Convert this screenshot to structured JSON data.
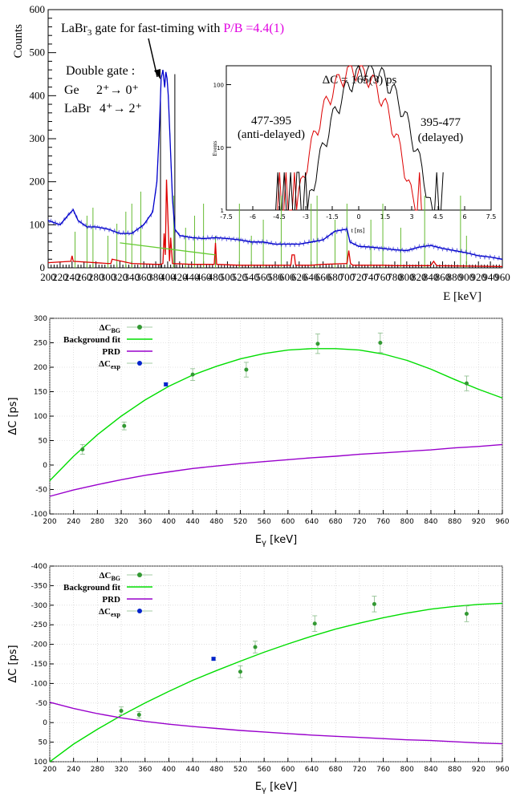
{
  "chart_data": [
    {
      "type": "line",
      "title": "LaBr3 gate for fast-timing with P/B =4.4(1)",
      "title_parts": {
        "pre": "LaBr",
        "sub": "3",
        "mid": " gate for fast-timing with ",
        "highlight": "P/B =4.4(1)",
        "highlight_color": "#e000e0"
      },
      "xlabel": "E [keV]",
      "ylabel": "Counts",
      "xlim": [
        200,
        960
      ],
      "ylim": [
        0,
        600
      ],
      "x_ticks": [
        "200",
        "220",
        "240",
        "260",
        "280",
        "300",
        "320",
        "340",
        "360",
        "380",
        "400",
        "420",
        "440",
        "460",
        "480",
        "500",
        "520",
        "540",
        "560",
        "580",
        "600",
        "620",
        "640",
        "660",
        "680",
        "700",
        "720",
        "740",
        "760",
        "780",
        "800",
        "820",
        "840",
        "860",
        "880",
        "900",
        "920",
        "940",
        "960"
      ],
      "y_ticks": [
        "0",
        "100",
        "200",
        "300",
        "400",
        "500",
        "600"
      ],
      "annotation": {
        "line1": "Double gate :",
        "ge_label": "Ge",
        "ge_trans": "2⁺→ 0⁺",
        "labr_label": "LaBr",
        "labr_trans": "4⁺→ 2⁺"
      },
      "gate_marks_x": [
        245,
        265,
        275,
        300,
        315,
        330,
        340,
        355,
        410,
        430,
        445,
        460,
        480,
        520,
        540,
        560,
        590,
        640,
        650,
        680,
        700,
        740,
        760,
        790,
        830,
        890,
        900
      ],
      "series": [
        {
          "color": "#0000cc",
          "values_x": [
            200,
            220,
            235,
            242,
            250,
            265,
            280,
            300,
            320,
            340,
            360,
            375,
            382,
            386,
            389,
            392,
            395,
            397,
            399,
            401,
            404,
            408,
            412,
            420,
            440,
            460,
            480,
            500,
            520,
            540,
            560,
            580,
            600,
            620,
            640,
            660,
            680,
            700,
            705,
            720,
            740,
            760,
            780,
            800,
            820,
            840,
            860,
            880,
            900,
            920,
            940,
            960
          ],
          "values_y": [
            110,
            100,
            125,
            135,
            110,
            95,
            95,
            90,
            80,
            80,
            100,
            130,
            200,
            320,
            440,
            460,
            420,
            455,
            440,
            400,
            300,
            160,
            90,
            75,
            70,
            68,
            70,
            68,
            65,
            60,
            60,
            55,
            55,
            55,
            60,
            65,
            85,
            90,
            60,
            50,
            48,
            45,
            42,
            40,
            48,
            52,
            45,
            40,
            35,
            28,
            25,
            20
          ]
        },
        {
          "color": "#dd0000",
          "values_x": [
            200,
            238,
            240,
            242,
            300,
            305,
            307,
            340,
            380,
            386,
            388,
            392,
            394,
            396,
            398,
            403,
            405,
            408,
            440,
            478,
            480,
            482,
            520,
            606,
            608,
            612,
            614,
            640,
            660,
            700,
            703,
            706,
            710,
            740,
            760,
            780,
            800,
            840,
            845,
            850,
            960
          ],
          "values_y": [
            12,
            15,
            28,
            15,
            10,
            10,
            20,
            10,
            8,
            8,
            8,
            10,
            80,
            30,
            205,
            15,
            70,
            10,
            8,
            8,
            58,
            8,
            6,
            6,
            30,
            30,
            6,
            6,
            8,
            10,
            40,
            10,
            6,
            6,
            6,
            5,
            5,
            5,
            15,
            5,
            3
          ]
        },
        {
          "color": "#66cc33",
          "values_x": [
            320,
            480
          ],
          "values_y": [
            58,
            30
          ]
        }
      ],
      "inset": {
        "type": "line",
        "title": "ΔC  = 165(3) ps",
        "xlabel": "t [ns]",
        "ylabel": "Events",
        "xlim": [
          -7.5,
          7.5
        ],
        "yscale": "log",
        "ylim": [
          1,
          200
        ],
        "x_ticks": [
          "-7.5",
          "-6",
          "-4.5",
          "-3",
          "-1.5",
          "0",
          "1.5",
          "3",
          "4.5",
          "6",
          "7.5"
        ],
        "y_ticks": [
          "1",
          "10",
          "100"
        ],
        "left_label": [
          "477-395",
          "(anti-delayed)"
        ],
        "right_label": [
          "395-477",
          "(delayed)"
        ],
        "series": [
          {
            "color": "#dd0000",
            "mu": -0.2,
            "sigma": 1.05,
            "peak": 175,
            "lo": -4.6,
            "hi": 3.6
          },
          {
            "color": "#000000",
            "mu": 0.6,
            "sigma": 1.1,
            "peak": 175,
            "lo": -4.7,
            "hi": 4.8
          }
        ]
      }
    },
    {
      "type": "scatter",
      "xlabel": "Eγ [keV]",
      "xlabel_main": "E",
      "xlabel_sub": "γ",
      "xlabel_unit": " [keV]",
      "ylabel": "ΔC [ps]",
      "xlim": [
        200,
        960
      ],
      "ylim": [
        -100,
        300
      ],
      "x_ticks": [
        "200",
        "240",
        "280",
        "320",
        "360",
        "400",
        "440",
        "480",
        "520",
        "560",
        "600",
        "640",
        "680",
        "720",
        "760",
        "800",
        "840",
        "880",
        "920",
        "960"
      ],
      "y_ticks": [
        "300",
        "250",
        "200",
        "150",
        "100",
        "50",
        "0",
        "-50",
        "-100"
      ],
      "legend": [
        {
          "label": "ΔC",
          "sub": "BG",
          "kind": "point",
          "color": "#339933"
        },
        {
          "label": "Background fit",
          "sub": "",
          "kind": "line",
          "color": "#00dd00"
        },
        {
          "label": "PRD",
          "sub": "",
          "kind": "line",
          "color": "#9900cc"
        },
        {
          "label": "ΔC",
          "sub": "exp",
          "kind": "point",
          "color": "#0022cc"
        }
      ],
      "series": [
        {
          "name": "ΔCBG",
          "color": "#339933",
          "x": [
            255,
            325,
            440,
            530,
            650,
            755,
            900
          ],
          "y": [
            32,
            80,
            185,
            195,
            248,
            250,
            167
          ],
          "err": [
            10,
            8,
            12,
            15,
            20,
            20,
            15
          ]
        },
        {
          "name": "ΔCexp",
          "color": "#0022cc",
          "x": [
            395
          ],
          "y": [
            165
          ],
          "err": [
            3
          ]
        },
        {
          "name": "Background fit",
          "color": "#00dd00",
          "x": [
            200,
            240,
            280,
            320,
            360,
            400,
            440,
            480,
            520,
            560,
            600,
            640,
            680,
            720,
            760,
            800,
            840,
            880,
            920,
            960
          ],
          "y": [
            -32,
            18,
            62,
            100,
            133,
            161,
            184,
            202,
            217,
            228,
            235,
            238,
            238,
            235,
            227,
            214,
            196,
            175,
            155,
            137
          ]
        },
        {
          "name": "PRD",
          "color": "#9900cc",
          "x": [
            200,
            240,
            280,
            320,
            360,
            400,
            440,
            480,
            520,
            560,
            600,
            640,
            680,
            720,
            760,
            800,
            840,
            880,
            920,
            960
          ],
          "y": [
            -64,
            -51,
            -40,
            -30,
            -21,
            -14,
            -7,
            -2,
            3,
            7,
            11,
            15,
            18,
            22,
            25,
            28,
            31,
            35,
            38,
            42
          ]
        }
      ]
    },
    {
      "type": "scatter",
      "xlabel": "Eγ [keV]",
      "xlabel_main": "E",
      "xlabel_sub": "γ",
      "xlabel_unit": " [keV]",
      "ylabel": "ΔC [ps]",
      "xlim": [
        200,
        960
      ],
      "ylim": [
        100,
        -400
      ],
      "x_ticks": [
        "200",
        "240",
        "280",
        "320",
        "360",
        "400",
        "440",
        "480",
        "520",
        "560",
        "600",
        "640",
        "680",
        "720",
        "760",
        "800",
        "840",
        "880",
        "920",
        "960"
      ],
      "y_ticks": [
        "-400",
        "-350",
        "-300",
        "-250",
        "-200",
        "-150",
        "-100",
        "-50",
        "0",
        "50",
        "100"
      ],
      "legend": [
        {
          "label": "ΔC",
          "sub": "BG",
          "kind": "point",
          "color": "#339933"
        },
        {
          "label": "Background fit",
          "sub": "",
          "kind": "line",
          "color": "#00dd00"
        },
        {
          "label": "PRD",
          "sub": "",
          "kind": "line",
          "color": "#9900cc"
        },
        {
          "label": "ΔC",
          "sub": "exp",
          "kind": "point",
          "color": "#0022cc"
        }
      ],
      "series": [
        {
          "name": "ΔCBG",
          "color": "#339933",
          "x": [
            320,
            350,
            520,
            545,
            645,
            745,
            900
          ],
          "y": [
            -30,
            -20,
            -130,
            -193,
            -253,
            -303,
            -278
          ],
          "err": [
            10,
            8,
            15,
            15,
            20,
            20,
            20
          ]
        },
        {
          "name": "ΔCexp",
          "color": "#0022cc",
          "x": [
            475
          ],
          "y": [
            -163
          ],
          "err": [
            3
          ]
        },
        {
          "name": "Background fit",
          "color": "#00dd00",
          "x": [
            200,
            240,
            280,
            320,
            360,
            400,
            440,
            480,
            520,
            560,
            600,
            640,
            680,
            720,
            760,
            800,
            840,
            880,
            920,
            960
          ],
          "y": [
            100,
            55,
            17,
            -18,
            -50,
            -80,
            -108,
            -133,
            -157,
            -180,
            -201,
            -221,
            -239,
            -254,
            -268,
            -280,
            -290,
            -297,
            -302,
            -305
          ]
        },
        {
          "name": "PRD",
          "color": "#9900cc",
          "x": [
            200,
            240,
            280,
            320,
            360,
            400,
            440,
            480,
            520,
            560,
            600,
            640,
            680,
            720,
            760,
            800,
            840,
            880,
            920,
            960
          ],
          "y": [
            -52,
            -36,
            -23,
            -12,
            -3,
            4,
            10,
            15,
            20,
            24,
            28,
            32,
            35,
            38,
            41,
            44,
            46,
            49,
            52,
            54
          ]
        }
      ]
    }
  ]
}
